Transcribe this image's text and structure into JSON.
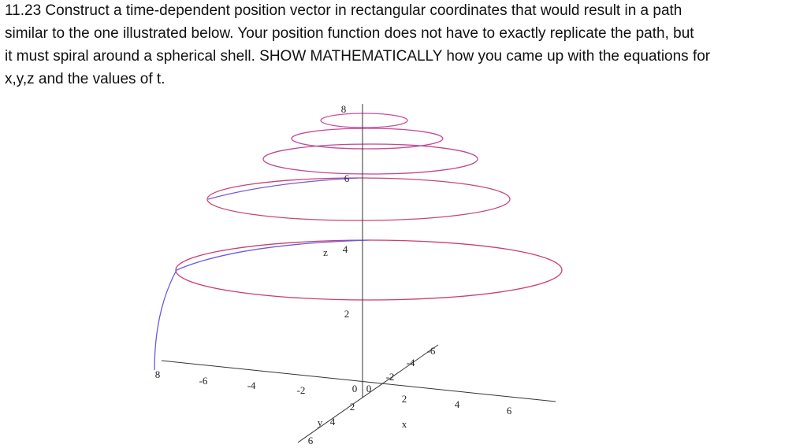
{
  "problem": {
    "lines": [
      "11.23 Construct a time-dependent position vector in rectangular coordinates that would result in a path",
      "similar to the one illustrated below. Your position function does not have to exactly replicate the path, but",
      "it must spiral around a spherical shell. SHOW MATHEMATICALLY how you came up with the equations for",
      "x,y,z and the values of t."
    ]
  },
  "figure": {
    "labels": [
      "8",
      "6",
      "4",
      "z",
      "2",
      "8",
      "-6",
      "-4",
      "-2",
      "0",
      "0",
      "2",
      "4",
      "6",
      "x",
      "-6",
      "-4",
      "-2",
      "2",
      "4",
      "6",
      "y"
    ]
  }
}
